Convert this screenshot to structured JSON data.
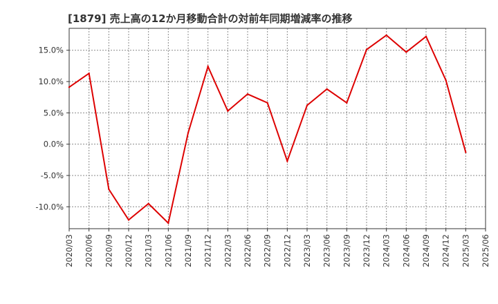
{
  "chart_data": {
    "type": "line",
    "title": "[1879]  売上高の12か月移動合計の対前年同期増減率の推移",
    "xlabel": "",
    "ylabel": "",
    "categories": [
      "2020/03",
      "2020/06",
      "2020/09",
      "2020/12",
      "2021/03",
      "2021/06",
      "2021/09",
      "2021/12",
      "2022/03",
      "2022/06",
      "2022/09",
      "2022/12",
      "2023/03",
      "2023/06",
      "2023/09",
      "2023/12",
      "2024/03",
      "2024/06",
      "2024/09",
      "2024/12",
      "2025/03",
      "2025/06"
    ],
    "y_ticks": [
      15.0,
      10.0,
      5.0,
      0.0,
      -5.0,
      -10.0
    ],
    "y_tick_labels": [
      "15.0%",
      "10.0%",
      "5.0%",
      "0.0%",
      "-5.0%",
      "-10.0%"
    ],
    "ylim": [
      -13.5,
      18.5
    ],
    "grid": true,
    "series": [
      {
        "name": "対前年同期増減率",
        "color": "#dd0000",
        "values": [
          9.1,
          11.3,
          -7.2,
          -12.1,
          -9.5,
          -12.6,
          1.8,
          12.4,
          5.3,
          8.0,
          6.6,
          -2.7,
          6.2,
          8.8,
          6.6,
          15.1,
          17.4,
          14.7,
          17.2,
          10.2,
          -1.3,
          null
        ]
      }
    ]
  }
}
